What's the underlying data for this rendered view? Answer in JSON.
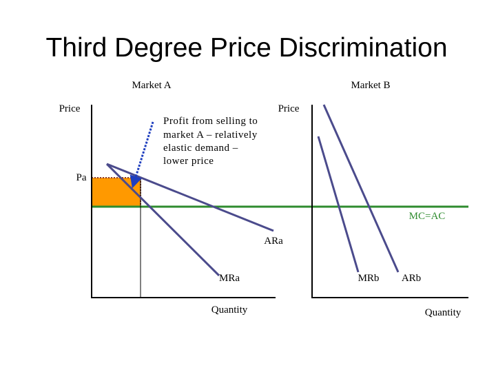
{
  "title": "Third Degree Price Discrimination",
  "market_a": {
    "heading": "Market A",
    "y_label": "Price",
    "x_label": "Quantity",
    "price_label": "Pa",
    "demand_label": "ARa",
    "mr_label": "MRa"
  },
  "market_b": {
    "heading": "Market B",
    "y_label": "Price",
    "x_label": "Quantity",
    "demand_label": "ARb",
    "mr_label": "MRb"
  },
  "cost_label": "MC=AC",
  "annotation": [
    "Profit from selling to",
    "market A – relatively",
    "elastic demand –",
    "lower price"
  ]
}
